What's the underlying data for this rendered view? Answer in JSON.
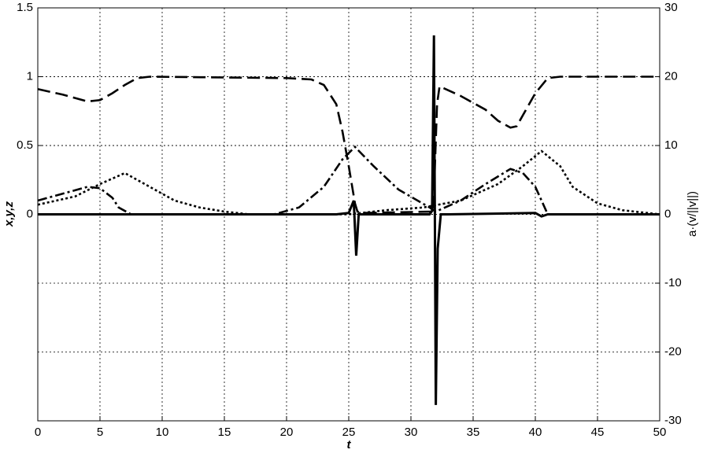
{
  "chart_data": {
    "type": "line",
    "xlabel": "t",
    "ylabel": "x,y,z",
    "y2label": "a·(v/||v||)",
    "xlim": [
      0,
      50
    ],
    "xticks": [
      0,
      5,
      10,
      15,
      20,
      25,
      30,
      35,
      40,
      45,
      50
    ],
    "ylim": [
      -1.5,
      1.5
    ],
    "yticks": [
      0,
      0.5,
      1,
      1.5
    ],
    "y2lim": [
      -30,
      30
    ],
    "y2ticks": [
      -30,
      -20,
      -10,
      0,
      10,
      20,
      30
    ],
    "grid": true,
    "series": [
      {
        "color": "#000000",
        "style": "dashed",
        "x": [
          0,
          2,
          4,
          5,
          6,
          7,
          8,
          9,
          20,
          22,
          23,
          24,
          24.5,
          25,
          25.5,
          25.7,
          26,
          31.8,
          32.1,
          32.3,
          34,
          36,
          37,
          38,
          38.5,
          39,
          40,
          41,
          42,
          50
        ],
        "values": [
          0.91,
          0.87,
          0.82,
          0.83,
          0.88,
          0.94,
          0.99,
          1,
          0.99,
          0.98,
          0.94,
          0.8,
          0.6,
          0.35,
          0.08,
          0.02,
          0.01,
          0.02,
          0.8,
          0.93,
          0.86,
          0.76,
          0.68,
          0.63,
          0.64,
          0.72,
          0.88,
          0.99,
          1,
          1
        ]
      },
      {
        "color": "#000000",
        "style": "dashdot",
        "x": [
          0,
          2,
          4,
          5,
          6,
          6.5,
          7.5,
          19,
          21,
          23,
          24.5,
          25.5,
          27,
          29,
          31.5,
          32,
          34,
          36,
          38,
          39,
          40,
          41,
          50
        ],
        "values": [
          0.1,
          0.15,
          0.2,
          0.19,
          0.12,
          0.05,
          0,
          0,
          0.05,
          0.2,
          0.4,
          0.49,
          0.35,
          0.18,
          0.05,
          0.02,
          0.1,
          0.22,
          0.33,
          0.3,
          0.2,
          0,
          0
        ]
      },
      {
        "color": "#000000",
        "style": "dotted",
        "x": [
          0,
          3,
          5,
          7,
          9,
          11,
          13,
          15,
          17,
          25,
          28,
          31,
          34,
          37,
          39,
          40.5,
          42,
          43,
          45,
          47,
          50
        ],
        "values": [
          0.07,
          0.13,
          0.22,
          0.3,
          0.2,
          0.1,
          0.05,
          0.02,
          0,
          0,
          0.03,
          0.05,
          0.1,
          0.22,
          0.35,
          0.46,
          0.35,
          0.2,
          0.08,
          0.03,
          0
        ]
      },
      {
        "color": "#000000",
        "style": "solid",
        "axis": "y2",
        "x": [
          0,
          24,
          25,
          25.4,
          25.6,
          25.8,
          26,
          31.5,
          31.7,
          31.85,
          32,
          32.15,
          32.4,
          33,
          40,
          40.5,
          41,
          50
        ],
        "values": [
          0,
          0,
          0.2,
          2,
          -6,
          0,
          0,
          0,
          0.5,
          26,
          -27.7,
          -5,
          0,
          0,
          0.2,
          -0.3,
          0,
          0
        ]
      }
    ]
  }
}
